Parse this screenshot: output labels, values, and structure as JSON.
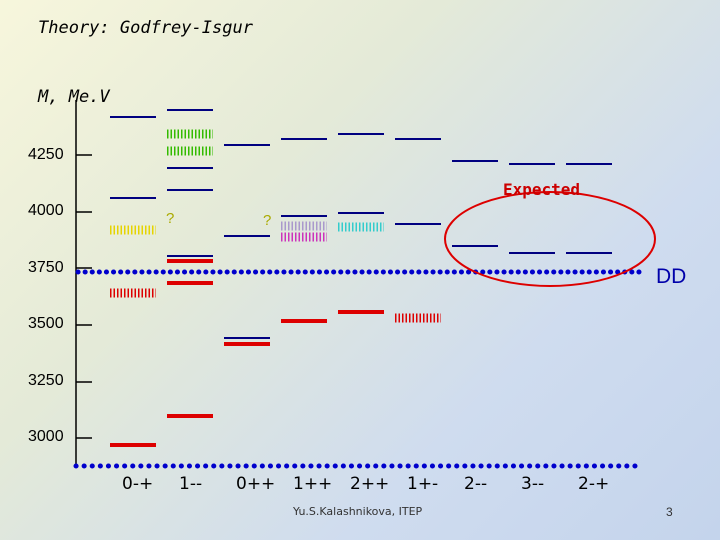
{
  "title": "Theory: Godfrey-Isgur",
  "y_axis_label": "M, Me.V",
  "y_ticks": [
    "4250",
    "4000",
    "3750",
    "3500",
    "3250",
    "3000"
  ],
  "x_labels": [
    "0-+",
    "1--",
    "0++",
    "1++",
    "2++",
    "1+-",
    "2--",
    "3--",
    "2-+"
  ],
  "annotations": {
    "expected": "Expected",
    "threshold": "DD",
    "q1": "?",
    "q2": "?"
  },
  "footer": "Yu.S.Kalashnikova, ITEP",
  "page_number": "3",
  "colors": {
    "theory": "#000080",
    "experiment": "#dd0000",
    "threshold": "#0000cc",
    "expected_ellipse": "#dd0000"
  }
}
